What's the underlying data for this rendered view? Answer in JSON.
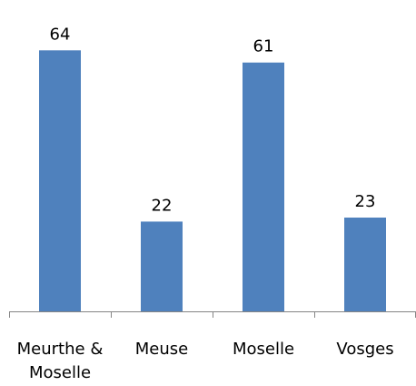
{
  "chart_data": {
    "type": "bar",
    "categories": [
      [
        "Meurthe &",
        "Moselle"
      ],
      [
        "Meuse"
      ],
      [
        "Moselle"
      ],
      [
        "Vosges"
      ]
    ],
    "values": [
      64,
      22,
      61,
      23
    ],
    "data_labels": [
      "64",
      "22",
      "61",
      "23"
    ],
    "title": "",
    "xlabel": "",
    "ylabel": "",
    "ylim": [
      0,
      70
    ],
    "grid": false,
    "legend": "none",
    "bar_color": "#4f81bd",
    "axis_color": "#868686"
  }
}
